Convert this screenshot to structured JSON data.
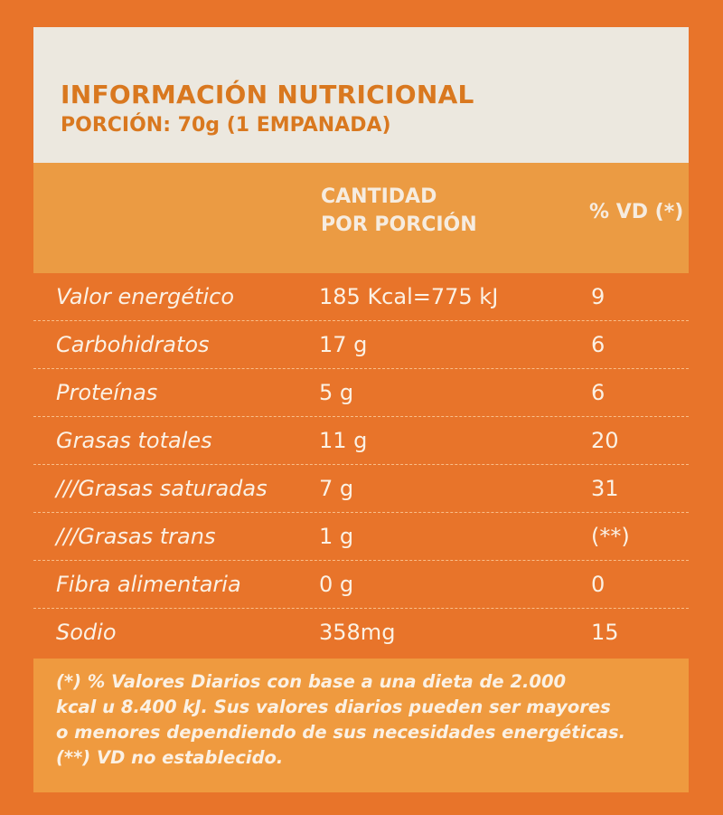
{
  "header": {
    "title": "INFORMACIÓN NUTRICIONAL",
    "serving": "PORCIÓN: 70g (1 EMPANADA)"
  },
  "columns": {
    "amount_line1": "CANTIDAD",
    "amount_line2": "POR PORCIÓN",
    "daily_value": "% VD (*)"
  },
  "rows": [
    {
      "name": "Valor energético",
      "amount": "185 Kcal=775 kJ",
      "vd": "9"
    },
    {
      "name": "Carbohidratos",
      "amount": "17 g",
      "vd": "6"
    },
    {
      "name": "Proteínas",
      "amount": "5 g",
      "vd": "6"
    },
    {
      "name": "Grasas totales",
      "amount": "11 g",
      "vd": "20"
    },
    {
      "name": "///Grasas saturadas",
      "amount": "7 g",
      "vd": "31"
    },
    {
      "name": "///Grasas trans",
      "amount": "1 g",
      "vd": "(**)"
    },
    {
      "name": "Fibra alimentaria",
      "amount": "0 g",
      "vd": "0"
    },
    {
      "name": "Sodio",
      "amount": "358mg",
      "vd": "15"
    }
  ],
  "footnote": {
    "line1": "(*) % Valores Diarios con base a una dieta de 2.000",
    "line2": "kcal u 8.400 kJ. Sus valores diarios pueden ser mayores",
    "line3": "o menores dependiendo de sus necesidades energéticas.",
    "line4": "(**) VD no establecido."
  },
  "colors": {
    "background": "#e8742a",
    "title_box": "#ece8df",
    "title_text": "#d9781f",
    "header_band": "#eb9b43",
    "footnote_box": "#ef9a3f"
  }
}
